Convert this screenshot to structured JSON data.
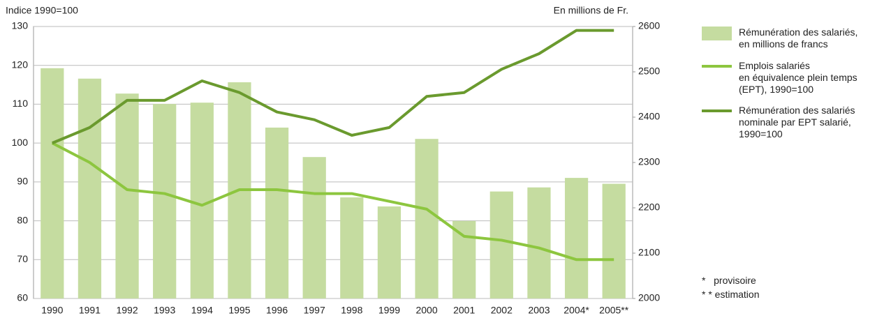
{
  "chart_data": {
    "type": "bar_line",
    "y_axis_label": "Indice 1990=100",
    "y2_axis_label": "En millions de Fr.",
    "categories": [
      "1990",
      "1991",
      "1992",
      "1993",
      "1994",
      "1995",
      "1996",
      "1997",
      "1998",
      "1999",
      "2000",
      "2001",
      "2002",
      "2003",
      "2004*",
      "2005**"
    ],
    "series": [
      {
        "name": "Rémunération des salariés,\nen millions de francs",
        "type": "bar",
        "axis": "y2",
        "color": "#c5dca0",
        "values": [
          2508,
          2485,
          2452,
          2429,
          2432,
          2477,
          2377,
          2312,
          2223,
          2203,
          2352,
          2171,
          2236,
          2245,
          2266,
          2253
        ]
      },
      {
        "name": "Emplois salariés\nen équivalence plein temps\n(EPT), 1990=100",
        "type": "line",
        "color": "#8dc63f",
        "values": [
          100,
          95,
          88,
          87,
          84,
          88,
          88,
          87,
          87,
          85,
          83,
          76,
          75,
          73,
          70,
          70
        ]
      },
      {
        "name": "Rémunération des salariés\nnominale par EPT salarié,\n1990=100",
        "type": "line",
        "color": "#6a9a2e",
        "values": [
          100,
          104,
          111,
          111,
          116,
          113,
          108,
          106,
          102,
          104,
          112,
          113,
          119,
          123,
          129,
          129
        ]
      }
    ],
    "ylim": [
      60,
      130
    ],
    "yticks": [
      60,
      70,
      80,
      90,
      100,
      110,
      120,
      130
    ],
    "y2lim": [
      2000,
      2600
    ],
    "y2ticks": [
      2000,
      2100,
      2200,
      2300,
      2400,
      2500,
      2600
    ],
    "grid": true,
    "notes": [
      "*   provisoire",
      "* * estimation"
    ]
  }
}
